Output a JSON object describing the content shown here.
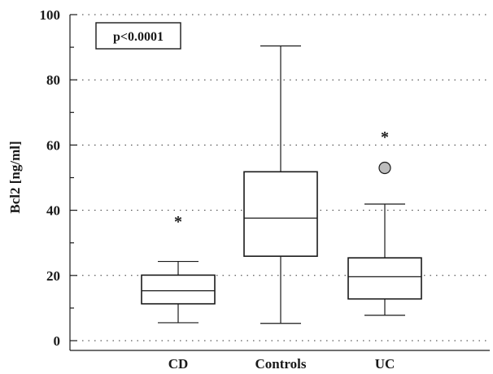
{
  "chart_data": {
    "type": "box",
    "ylabel": "Bcl2 [ng/ml]",
    "xlabel": "",
    "ylim": [
      0,
      100
    ],
    "yticks": [
      0,
      20,
      40,
      60,
      80,
      100
    ],
    "grid": "horizontal-dotted",
    "annotation": "p<0.0001",
    "groups": [
      {
        "label": "CD",
        "whisker_low": 5.5,
        "q1": 11.3,
        "median": 15.3,
        "q3": 20.1,
        "whisker_high": 24.3,
        "outliers": [],
        "far_outliers": [
          37.4
        ]
      },
      {
        "label": "Controls",
        "whisker_low": 5.3,
        "q1": 25.9,
        "median": 37.6,
        "q3": 51.8,
        "whisker_high": 90.4,
        "outliers": [],
        "far_outliers": []
      },
      {
        "label": "UC",
        "whisker_low": 7.8,
        "q1": 12.8,
        "median": 19.6,
        "q3": 25.4,
        "whisker_high": 41.9,
        "outliers": [
          53.0
        ],
        "far_outliers": [
          63.4
        ]
      }
    ]
  }
}
